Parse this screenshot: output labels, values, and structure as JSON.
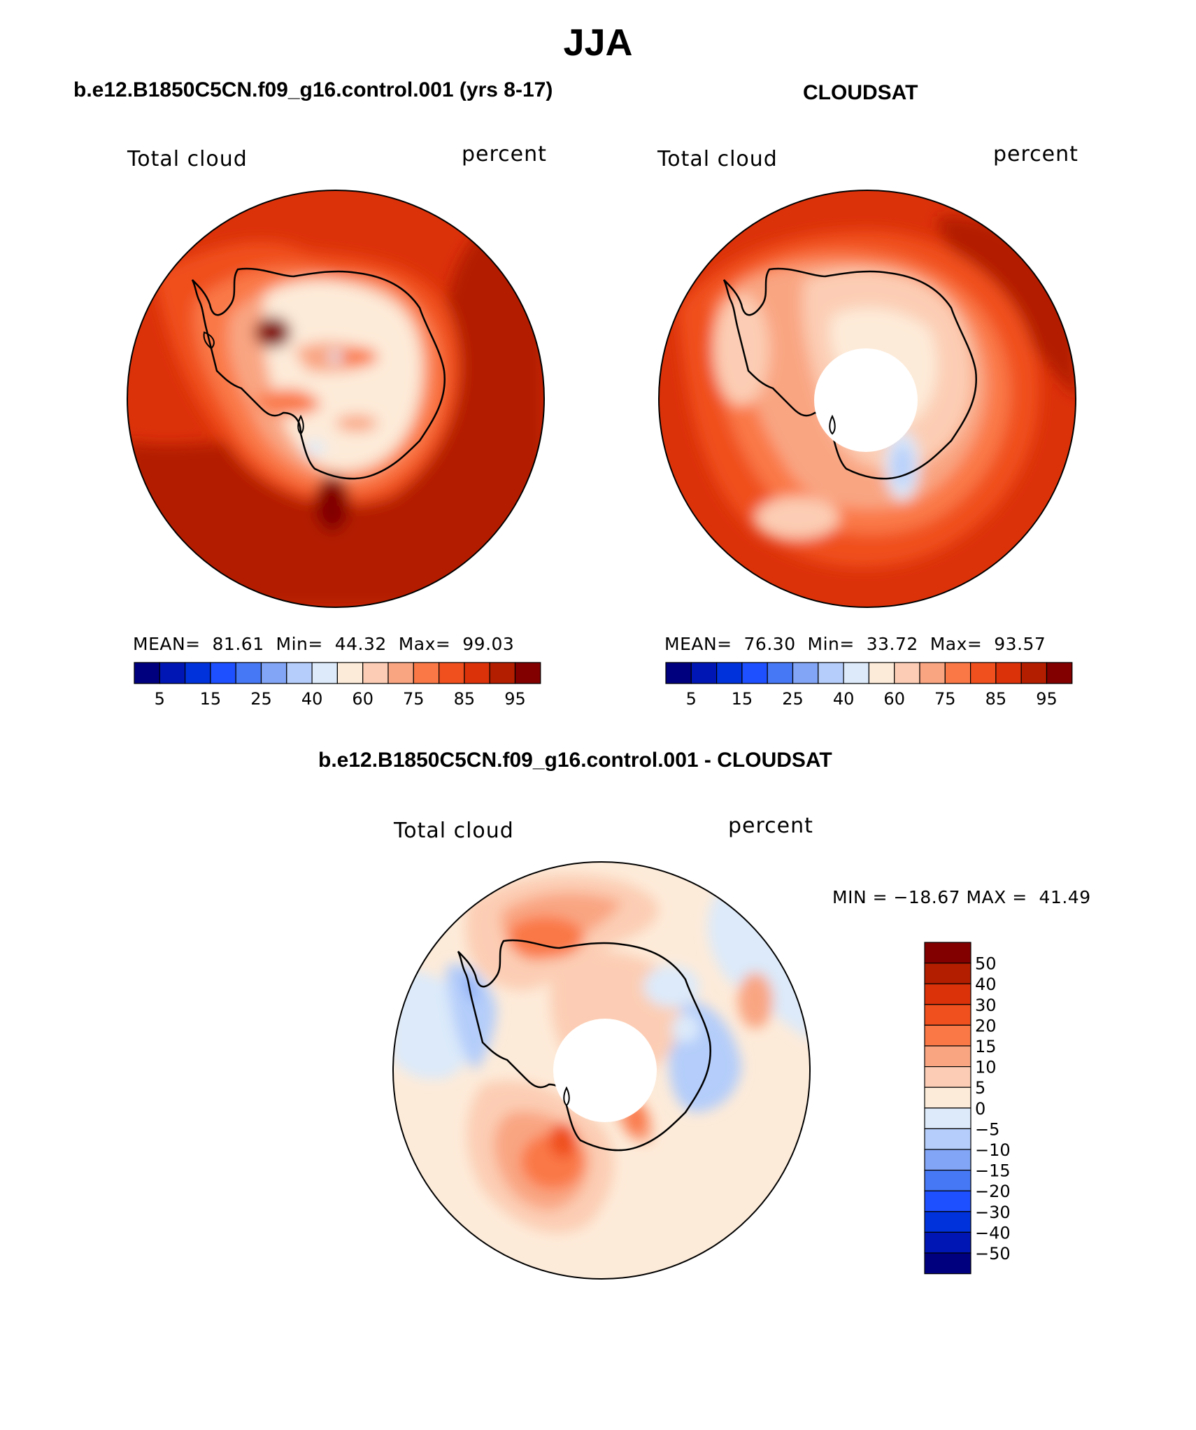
{
  "title": "JJA",
  "panels": [
    {
      "id": "model",
      "title": "b.e12.B1850C5CN.f09_g16.control.001 (yrs 8-17)",
      "left_label": "Total cloud",
      "right_label": "percent",
      "stats": {
        "mean_label": "MEAN=",
        "mean": "81.61",
        "min_label": "Min=",
        "min": "44.32",
        "max_label": "Max=",
        "max": "99.03"
      },
      "colorbar_labels": [
        "5",
        "15",
        "25",
        "40",
        "60",
        "75",
        "85",
        "95"
      ]
    },
    {
      "id": "obs",
      "title": "CLOUDSAT",
      "left_label": "Total cloud",
      "right_label": "percent",
      "stats": {
        "mean_label": "MEAN=",
        "mean": "76.30",
        "min_label": "Min=",
        "min": "33.72",
        "max_label": "Max=",
        "max": "93.57"
      },
      "colorbar_labels": [
        "5",
        "15",
        "25",
        "40",
        "60",
        "75",
        "85",
        "95"
      ]
    },
    {
      "id": "diff",
      "title": "b.e12.B1850C5CN.f09_g16.control.001 - CLOUDSAT",
      "left_label": "Total cloud",
      "right_label": "percent",
      "minmax": "MIN = −18.67 MAX =  41.49",
      "colorbar_labels": [
        "50",
        "40",
        "30",
        "20",
        "15",
        "10",
        "5",
        "0",
        "−5",
        "−10",
        "−15",
        "−20",
        "−30",
        "−40",
        "−50"
      ]
    }
  ],
  "colors": {
    "scale": [
      "#00007f",
      "#0016b4",
      "#0032dc",
      "#1e50ff",
      "#4678f5",
      "#82a5f5",
      "#b4cdfa",
      "#dceafa",
      "#fdebd9",
      "#fccdb4",
      "#f9a582",
      "#fa7846",
      "#f0501e",
      "#dc320a",
      "#b41e00",
      "#820000"
    ],
    "coast": "#000000"
  }
}
